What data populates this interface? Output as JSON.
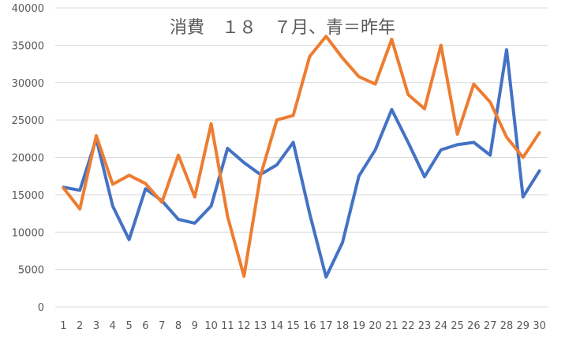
{
  "chart_data": {
    "type": "line",
    "title": "消費　１８　７月、青＝昨年",
    "xlabel": "",
    "ylabel": "",
    "ylim": [
      0,
      40000
    ],
    "yticks": [
      0,
      5000,
      10000,
      15000,
      20000,
      25000,
      30000,
      35000,
      40000
    ],
    "grid": true,
    "legend": "none",
    "categories": [
      "1",
      "2",
      "3",
      "4",
      "5",
      "6",
      "7",
      "8",
      "9",
      "10",
      "11",
      "12",
      "13",
      "14",
      "15",
      "16",
      "17",
      "18",
      "19",
      "20",
      "21",
      "22",
      "23",
      "24",
      "25",
      "26",
      "27",
      "28",
      "29",
      "30"
    ],
    "series": [
      {
        "color": "#4472c4",
        "values": [
          16000,
          15600,
          22500,
          13500,
          9000,
          15800,
          14200,
          11700,
          11200,
          13500,
          21200,
          19300,
          17700,
          19000,
          22000,
          12500,
          4000,
          8600,
          17500,
          21000,
          26400,
          22000,
          17400,
          21000,
          21700,
          22000,
          20300,
          34400,
          14700,
          18200
        ]
      },
      {
        "color": "#ed7d31",
        "values": [
          15900,
          13100,
          22900,
          16400,
          17600,
          16500,
          14000,
          20300,
          14700,
          24500,
          12100,
          4100,
          17500,
          25000,
          25600,
          33500,
          36200,
          33300,
          30800,
          29800,
          35800,
          28400,
          26500,
          35000,
          23100,
          29800,
          27400,
          22700,
          20000,
          23300
        ]
      }
    ]
  }
}
